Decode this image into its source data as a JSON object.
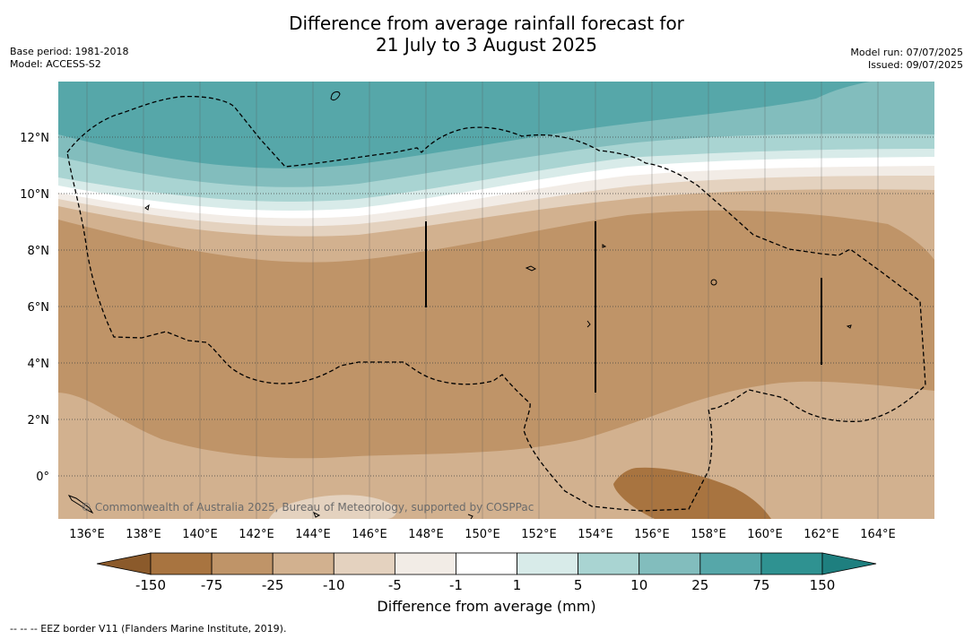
{
  "title_line1": "Difference from average rainfall forecast for",
  "title_line2": "21 July to 3 August 2025",
  "base_period": "Base period: 1981-2018",
  "model": "Model: ACCESS-S2",
  "model_run": "Model run: 07/07/2025",
  "issued": "Issued: 09/07/2025",
  "copyright": "© Commonwealth of Australia 2025, Bureau of Meteorology, supported by COSPPac",
  "colorbar": {
    "title": "Difference from average (mm)",
    "ticks": [
      "-150",
      "-75",
      "-25",
      "-10",
      "-5",
      "-1",
      "1",
      "5",
      "10",
      "25",
      "75",
      "150"
    ],
    "colors": [
      "#8b5a2b",
      "#a87440",
      "#bf9468",
      "#d2b18f",
      "#e4d2bf",
      "#f2ece6",
      "#ffffff",
      "#d8ebe9",
      "#a9d4d2",
      "#82bdbd",
      "#56a7a9",
      "#2f9291",
      "#1e7f7f"
    ]
  },
  "axes": {
    "lon_labels": [
      "136°E",
      "138°E",
      "140°E",
      "142°E",
      "144°E",
      "146°E",
      "148°E",
      "150°E",
      "152°E",
      "154°E",
      "156°E",
      "158°E",
      "160°E",
      "162°E",
      "164°E"
    ],
    "lat_labels": [
      "12°N",
      "10°N",
      "8°N",
      "6°N",
      "4°N",
      "2°N",
      "0°"
    ]
  },
  "footnote": "--  --  -- EEZ border V11 (Flanders Marine Institute, 2019)."
}
